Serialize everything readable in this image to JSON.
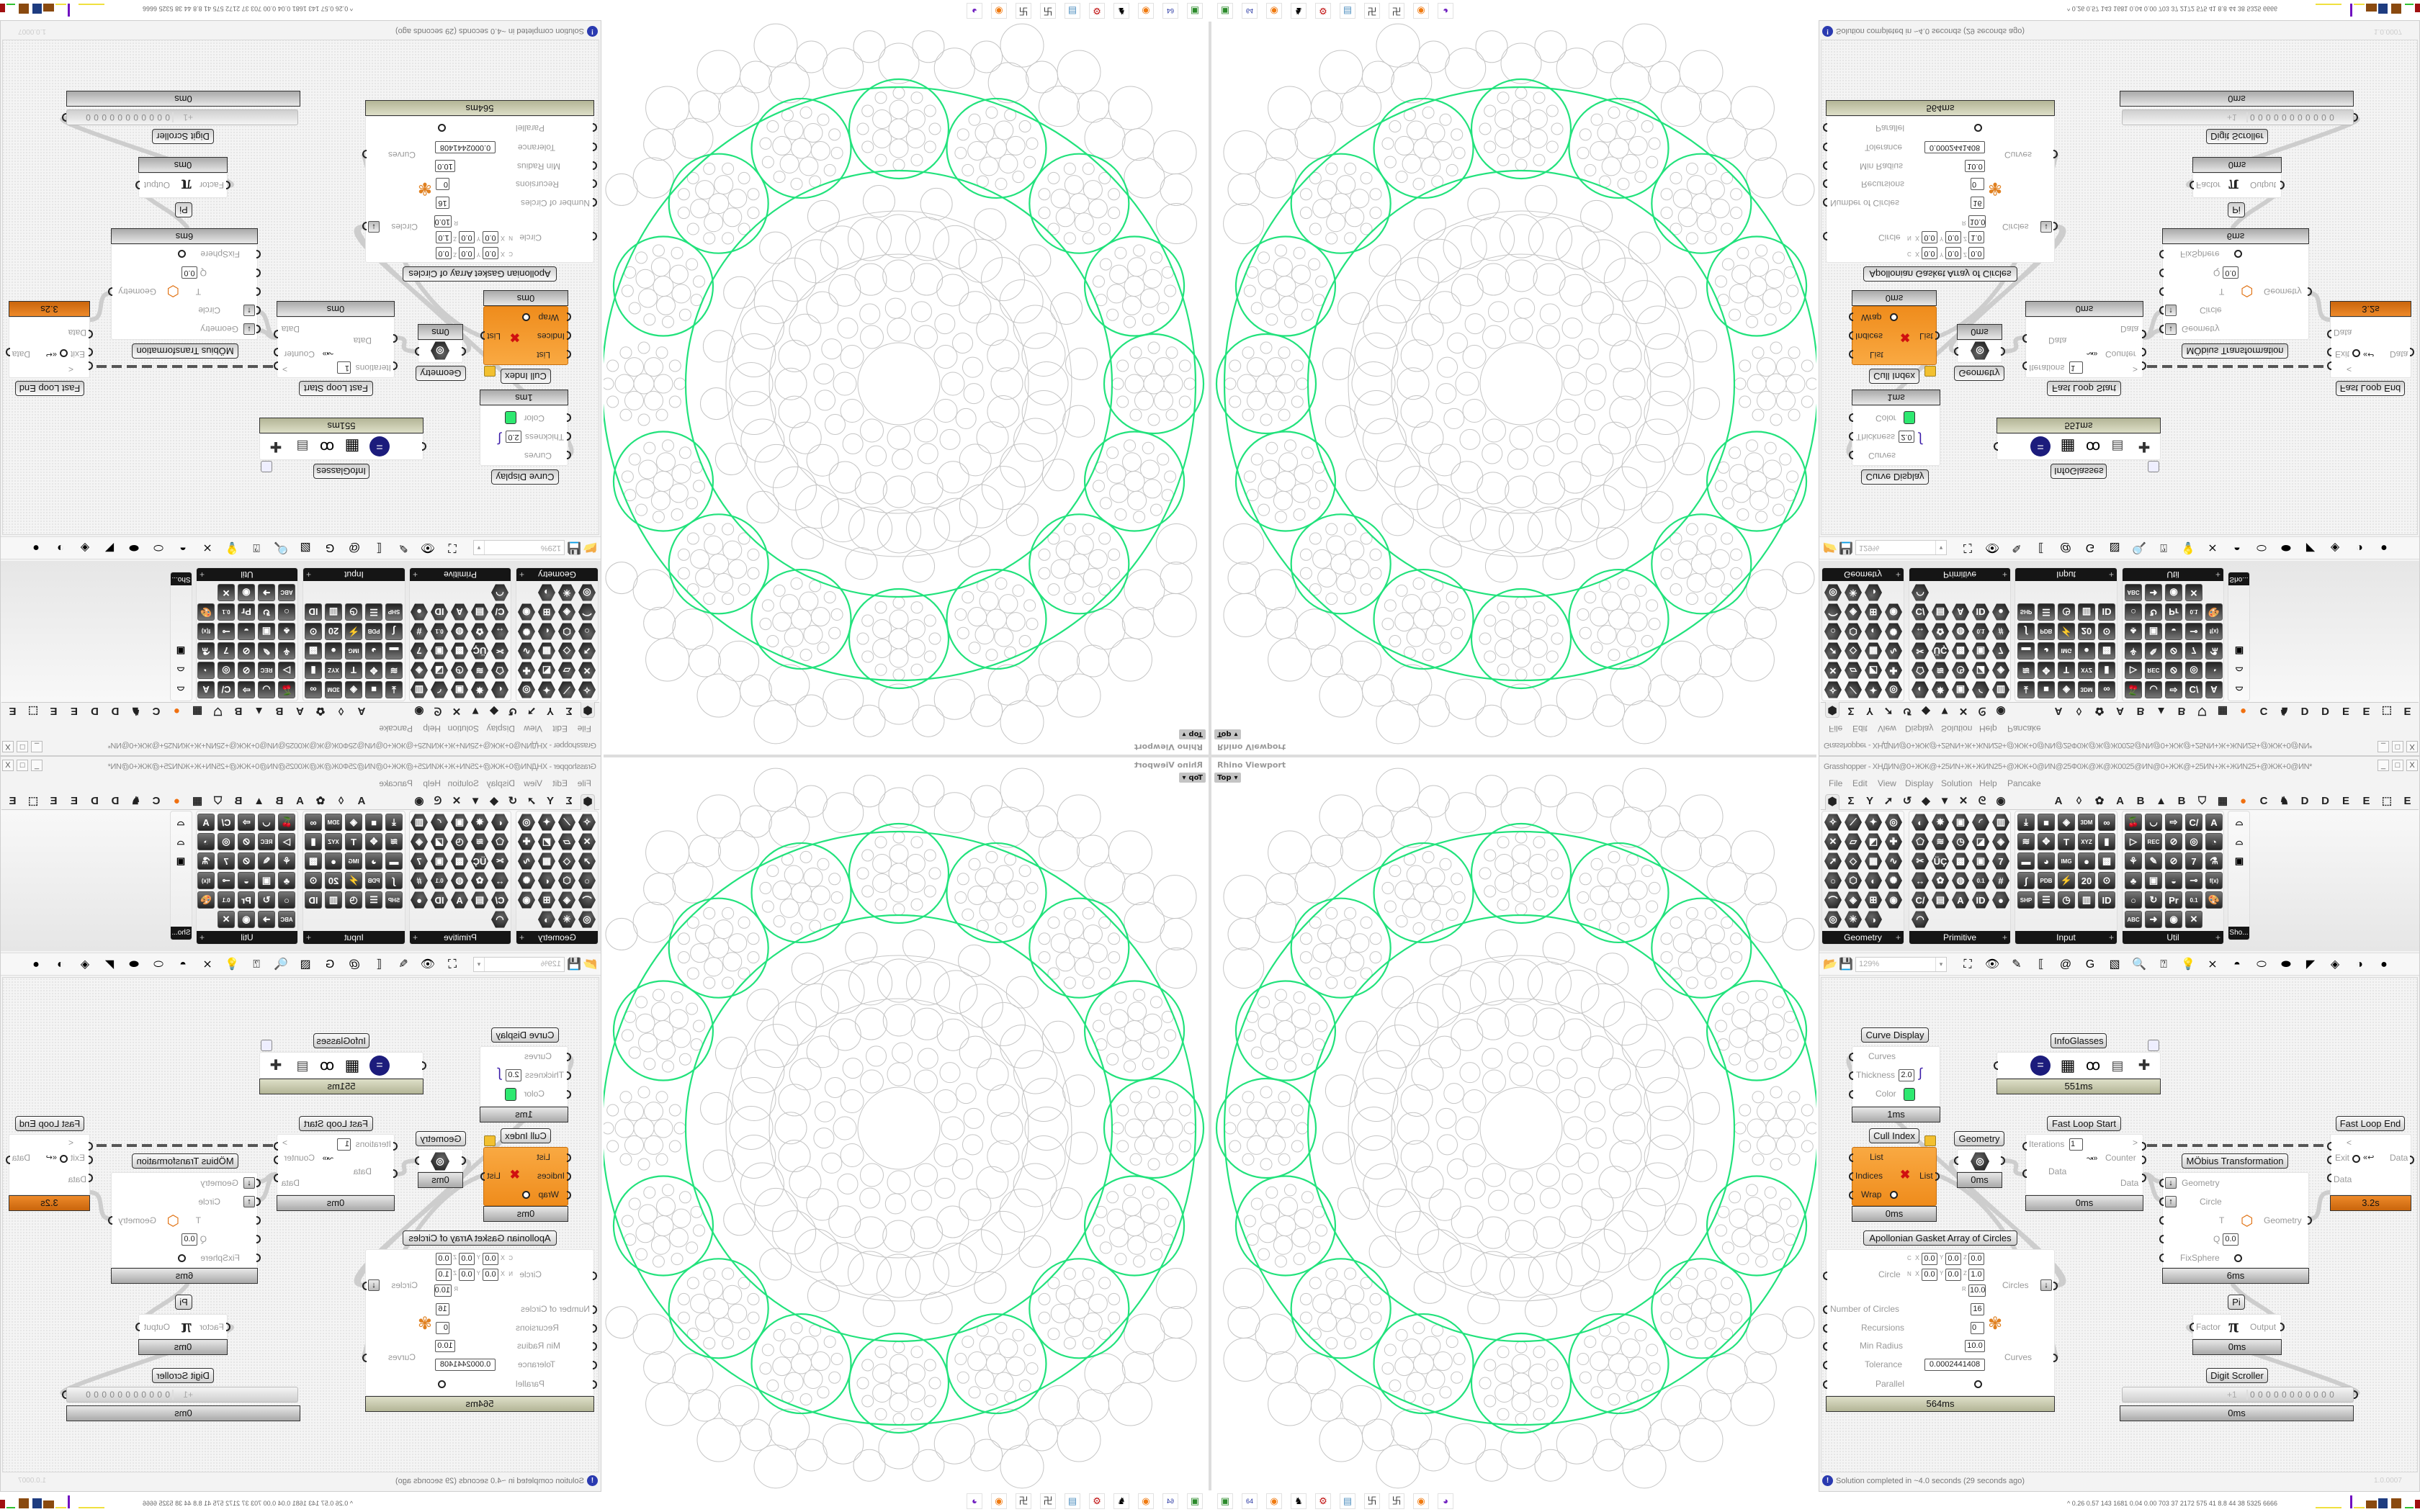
{
  "viewport": {
    "title": "Rhino Viewport",
    "view": "Top",
    "colors": {
      "ring": "#22e27c",
      "pattern": "#c6c6c6"
    }
  },
  "grasshopper": {
    "title": "Grasshopper - XHДИN@0+ЖЖ@+25ИN+Ж+ЖИN25+@ЖЖ+0@ИN@25Ф0Ж@Ж@Ж0025@ИN@0+ЖЖ@+25ИN+Ж+ЖИN25+@ЖЖ+0@ИN*",
    "window_controls": {
      "minimize": "_",
      "maximize": "□",
      "close": "X"
    },
    "menu": [
      "File",
      "Edit",
      "View",
      "Display",
      "Solution",
      "Help",
      "Pancake"
    ],
    "tabs": [
      {
        "name": "params",
        "glyph": "⬢"
      },
      {
        "name": "maths",
        "glyph": "Σ"
      },
      {
        "name": "sets",
        "glyph": "Y"
      },
      {
        "name": "vector",
        "glyph": "➚"
      },
      {
        "name": "curve",
        "glyph": "↺"
      },
      {
        "name": "surface",
        "glyph": "◆"
      },
      {
        "name": "mesh",
        "glyph": "▼"
      },
      {
        "name": "intersect",
        "glyph": "✕"
      },
      {
        "name": "transform",
        "glyph": "ᘓ"
      },
      {
        "name": "display",
        "glyph": "◉"
      },
      {
        "name": "a",
        "glyph": "A"
      },
      {
        "name": "crystal",
        "glyph": "◊"
      },
      {
        "name": "flower",
        "glyph": "✿"
      },
      {
        "name": "a2",
        "glyph": "A"
      },
      {
        "name": "b",
        "glyph": "B"
      },
      {
        "name": "terrain",
        "glyph": "▲"
      },
      {
        "name": "b2",
        "glyph": "B"
      },
      {
        "name": "shield",
        "glyph": "⛉"
      },
      {
        "name": "grid",
        "glyph": "▦"
      },
      {
        "name": "orange-dot",
        "glyph": "●"
      },
      {
        "name": "c",
        "glyph": "C"
      },
      {
        "name": "horse",
        "glyph": "♞"
      },
      {
        "name": "d",
        "glyph": "D"
      },
      {
        "name": "d2",
        "glyph": "D"
      },
      {
        "name": "e",
        "glyph": "E"
      },
      {
        "name": "e2",
        "glyph": "E"
      },
      {
        "name": "dotted-square",
        "glyph": "⬚"
      },
      {
        "name": "e3",
        "glyph": "E"
      }
    ],
    "ribbon": {
      "panels": [
        {
          "label": "Geometry",
          "style": "hex",
          "cols": 4,
          "icons": [
            "✧",
            "⟋",
            "✦",
            "◎",
            "✕",
            "▱",
            "◩",
            "✚",
            "➚",
            "◇",
            "▦",
            "∿",
            "○",
            "⬡",
            "◐",
            "✺",
            "⌒",
            "◈",
            "⊞",
            "◉",
            "◎",
            "✳",
            "◑"
          ]
        },
        {
          "label": "Primitive",
          "style": "hex",
          "cols": 5,
          "icons": [
            "◐",
            "✸",
            "▣",
            "◜",
            "▥",
            "⬠",
            "≋",
            "◷",
            "◪",
            "◈",
            "✂",
            "ÜÇ",
            "▩",
            "▣",
            "7",
            "↔",
            "✿",
            "◍",
            "0.1",
            "#",
            "C/",
            "▤",
            "A",
            "ID",
            "●",
            "◠"
          ]
        },
        {
          "label": "Input",
          "style": "sq",
          "cols": 5,
          "icons": [
            "⤓",
            "■",
            "◈",
            "3DM",
            "∞",
            "≋",
            "✥",
            "T",
            "XYZ",
            "▮",
            "▬",
            "◕",
            "IMG",
            "●",
            "▩",
            "∫",
            "PDB",
            "⚡",
            "20",
            "⊙",
            "SHP",
            "☰",
            "◷",
            "▥",
            "ID"
          ]
        },
        {
          "label": "Util",
          "style": "sq",
          "cols": 5,
          "icons": [
            "🍒",
            "◡",
            "⇨",
            "C/",
            "A",
            "▷",
            "REC",
            "⊘",
            "◎",
            "◔",
            "⚘",
            "✎",
            "⊘",
            "7",
            "⚗",
            "♣",
            "▣",
            "◒",
            "⊸",
            "f(x)",
            "○",
            "↻",
            "Pr",
            "0.1",
            "🎨",
            "ABC",
            "➜",
            "◉",
            "✕"
          ]
        },
        {
          "label": "Sho...",
          "style": "plain",
          "cols": 1,
          "icons": [
            "⌓",
            "⌓",
            "▣"
          ]
        }
      ]
    },
    "toolbar": {
      "zoom": "129%",
      "icons": [
        {
          "name": "open-file",
          "glyph": "📂"
        },
        {
          "name": "save-file",
          "glyph": "💾"
        },
        {
          "name": "zoom-extents",
          "glyph": "⛶"
        },
        {
          "name": "preview",
          "glyph": "👁"
        },
        {
          "name": "sketch",
          "glyph": "✎"
        },
        {
          "name": "bracket",
          "glyph": "⟦"
        },
        {
          "name": "at",
          "glyph": "@"
        },
        {
          "name": "gha",
          "glyph": "G"
        },
        {
          "name": "picture",
          "glyph": "▧"
        },
        {
          "name": "search",
          "glyph": "🔍"
        },
        {
          "name": "package",
          "glyph": "⍰"
        },
        {
          "name": "bulb",
          "glyph": "💡"
        },
        {
          "name": "wires",
          "glyph": "⨯"
        },
        {
          "name": "preview-off",
          "glyph": "◓"
        },
        {
          "name": "wireframe",
          "glyph": "⬭"
        },
        {
          "name": "shaded",
          "glyph": "⬬"
        },
        {
          "name": "cone",
          "glyph": "◤"
        },
        {
          "name": "selected",
          "glyph": "◈"
        },
        {
          "name": "sphere-half",
          "glyph": "◑"
        },
        {
          "name": "sphere",
          "glyph": "●"
        }
      ]
    },
    "components": {
      "curve_display": {
        "label": "Curve Display",
        "curves": "Curves",
        "thickness_label": "Thickness",
        "thickness": "2.0",
        "color_label": "Color",
        "color": "#2ee870",
        "time": "1ms"
      },
      "infoglasses": {
        "label": "InfoGlasses",
        "time": "551ms"
      },
      "cull_index": {
        "label": "Cull Index",
        "list_in": "List",
        "indices": "Indices",
        "wrap": "Wrap",
        "list_out": "List",
        "time": "0ms"
      },
      "geometry": {
        "label": "Geometry",
        "time": "0ms"
      },
      "fast_loop_start": {
        "label": "Fast Loop Start",
        "marker": ">",
        "iterations_label": "Iterations",
        "iterations": "1",
        "counter": "Counter",
        "data_in": "Data",
        "data_out": "Data",
        "time": "0ms"
      },
      "fast_loop_end": {
        "label": "Fast Loop End",
        "marker": "<",
        "exit": "Exit",
        "data_out": "Data",
        "data_in": "Data",
        "time": "3.2s"
      },
      "mobius": {
        "label": "MÖbius Transformation",
        "geometry_in": "Geometry",
        "circle": "Circle",
        "t": "T",
        "q_label": "Q",
        "q": "0.0",
        "fixsphere": "FixSphere",
        "geometry_out": "Geometry",
        "time": "6ms"
      },
      "pi": {
        "label": "Pi",
        "factor": "Factor",
        "output": "Output",
        "time": "0ms"
      },
      "digit_scroller": {
        "label": "Digit Scroller",
        "prefix": "+1",
        "digits": "0 0 0 0 0 0 0 0 0 0 0",
        "time": "0ms"
      },
      "apollonian": {
        "label": "Apollonian Gasket Array of Circles",
        "circle_label": "Circle",
        "c": "C",
        "n": "N",
        "x": "X",
        "y": "Y",
        "z": "Z",
        "r": "R",
        "cx": "0.0",
        "cy": "0.0",
        "cz": "0.0",
        "nx": "0.0",
        "ny": "0.0",
        "nz": "1.0",
        "radius": "10.0",
        "number_label": "Number of Circles",
        "number": "16",
        "recursions_label": "Recursions",
        "recursions": "0",
        "min_radius_label": "Min Radius",
        "min_radius": "10.0",
        "tolerance_label": "Tolerance",
        "tolerance": "0.0002441408",
        "parallel_label": "Parallel",
        "out_circles": "Circles",
        "out_curves": "Curves",
        "time": "564ms"
      }
    },
    "status": {
      "message": "Solution completed in ~4.0 seconds (29 seconds ago)",
      "version": "1.0.0007"
    }
  },
  "taskbar": {
    "icons": [
      {
        "name": "device-app",
        "glyph": "▣",
        "color": "#2a8a2a"
      },
      {
        "name": "floppy-64",
        "glyph": "64",
        "color": "#2030a0"
      },
      {
        "name": "firefox",
        "glyph": "◉",
        "color": "#f07a10"
      },
      {
        "name": "rhino",
        "glyph": "♞",
        "color": "#000000"
      },
      {
        "name": "settings-gear",
        "glyph": "⚙",
        "color": "#c01010"
      },
      {
        "name": "notepad",
        "glyph": "▤",
        "color": "#5090c0"
      },
      {
        "name": "grasshopper-app",
        "glyph": "卐",
        "color": "#333333"
      },
      {
        "name": "grasshopper-app-2",
        "glyph": "卐",
        "color": "#333333"
      },
      {
        "name": "firefox-2",
        "glyph": "◉",
        "color": "#f07a10"
      },
      {
        "name": "purple-app",
        "glyph": "◕",
        "color": "#7020c0"
      }
    ]
  },
  "tray": {
    "stats": "^  0.26 0.57 143 1681 0.04 0.00 703 37 2172 575 41 8.8 44 38 5325 6666",
    "graph_colors": [
      "#f0e040",
      "#7010c0",
      "#8a4a10",
      "#1e3c80",
      "#8a4a10",
      "#30c030",
      "#a01010"
    ]
  }
}
